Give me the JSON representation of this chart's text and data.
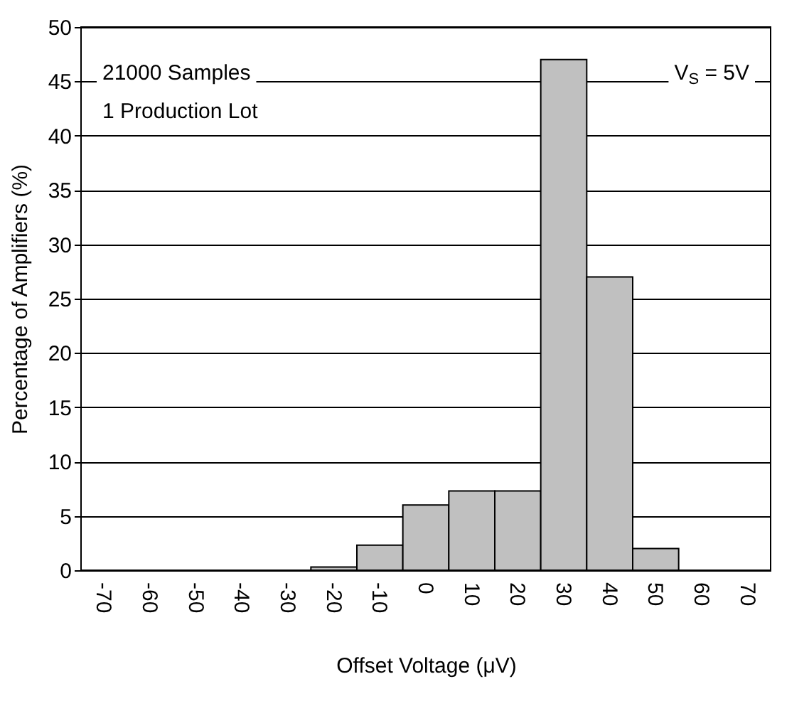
{
  "chart_data": {
    "type": "bar",
    "xlabel": "Offset Voltage (μV)",
    "ylabel": "Percentage of Amplifiers (%)",
    "categories": [
      "-70",
      "-60",
      "-50",
      "-40",
      "-30",
      "-20",
      "-10",
      "0",
      "10",
      "20",
      "30",
      "40",
      "50",
      "60",
      "70"
    ],
    "values": [
      0,
      0,
      0,
      0,
      0,
      0.3,
      2.3,
      6,
      7.3,
      7.3,
      47,
      27,
      2,
      0,
      0
    ],
    "color": "#c0c0c0",
    "ylim": [
      0,
      50
    ],
    "yticks": [
      0,
      5,
      10,
      15,
      20,
      25,
      30,
      35,
      40,
      45,
      50
    ],
    "grid": "y",
    "annotations": [
      "21000 Samples",
      "1 Production Lot",
      "V$_{S}$ = 5V"
    ]
  }
}
